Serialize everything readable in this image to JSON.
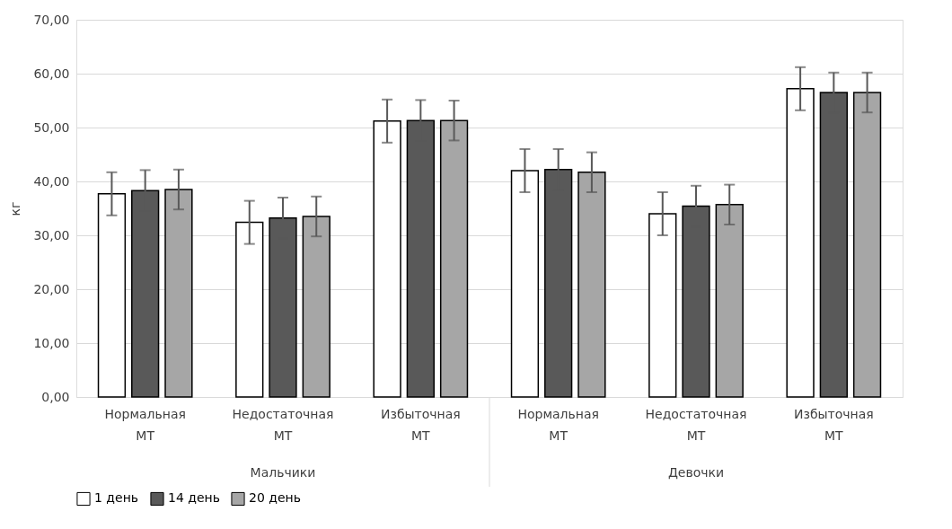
{
  "chart_data": {
    "type": "bar",
    "ylabel": "кг",
    "categories": [
      "Нормальная МТ",
      "Недостаточная МТ",
      "Избыточная МТ",
      "Нормальная МТ",
      "Недостаточная МТ",
      "Избыточная МТ"
    ],
    "series": [
      {
        "name": "1 день",
        "color": "#ffffff",
        "values": [
          37.7,
          32.4,
          51.2,
          42.0,
          34.0,
          57.2
        ],
        "errors": [
          4.0,
          4.0,
          4.0,
          4.0,
          4.0,
          4.0
        ]
      },
      {
        "name": "14 день",
        "color": "#595959",
        "values": [
          38.3,
          33.2,
          51.3,
          42.2,
          35.4,
          56.5
        ],
        "errors": [
          3.8,
          3.8,
          3.8,
          3.8,
          3.8,
          3.7
        ]
      },
      {
        "name": "20 день",
        "color": "#a6a6a6",
        "values": [
          38.5,
          33.5,
          51.3,
          41.7,
          35.7,
          56.5
        ],
        "errors": [
          3.7,
          3.7,
          3.7,
          3.7,
          3.7,
          3.7
        ]
      }
    ],
    "ylim": [
      0,
      70
    ],
    "yticks": [
      {
        "value": 0,
        "label": "0,00"
      },
      {
        "value": 10,
        "label": "10,00"
      },
      {
        "value": 20,
        "label": "20,00"
      },
      {
        "value": 30,
        "label": "30,00"
      },
      {
        "value": 40,
        "label": "40,00"
      },
      {
        "value": 50,
        "label": "50,00"
      },
      {
        "value": 60,
        "label": "60,00"
      },
      {
        "value": 70,
        "label": "70,00"
      }
    ],
    "grid": "y",
    "legend": "bottom",
    "annotations": [
      "Мальчики",
      "Девочки"
    ]
  }
}
